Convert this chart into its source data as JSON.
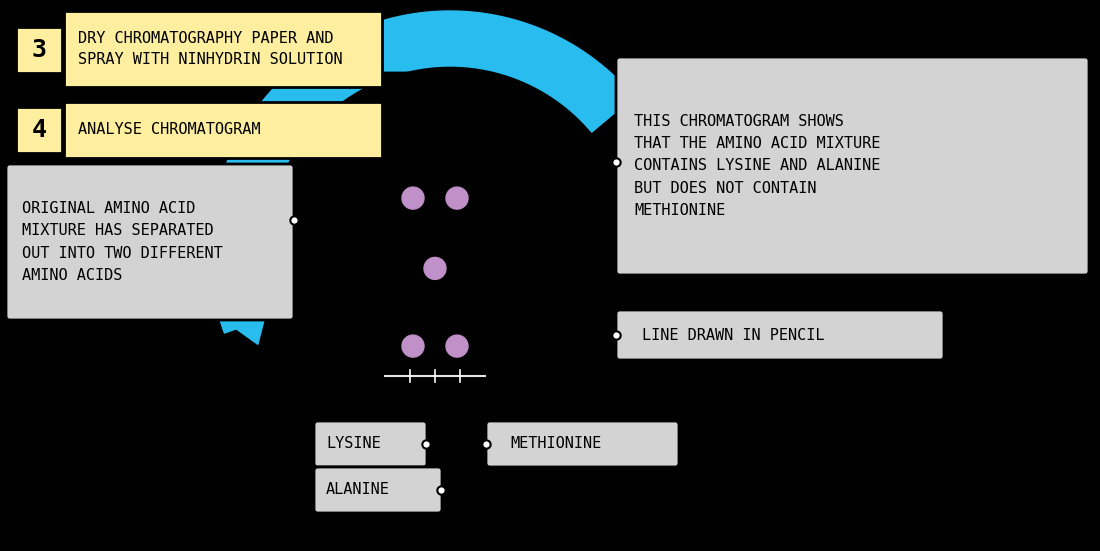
{
  "background_color": "#000000",
  "cyan_color": "#29BCEF",
  "yellow_box_color": "#FDEEA0",
  "grey_box_color": "#D3D3D3",
  "purple_dot_color": "#C090C8",
  "text_color": "#000000",
  "white_color": "#FFFFFF",
  "step3_number": "3",
  "step3_text": "DRY CHROMATOGRAPHY PAPER AND\nSPRAY WITH NINHYDRIN SOLUTION",
  "step4_number": "4",
  "step4_text": "ANALYSE CHROMATOGRAM",
  "left_box_text": "ORIGINAL AMINO ACID\nMIXTURE HAS SEPARATED\nOUT INTO TWO DIFFERENT\nAMINO ACIDS",
  "right_box_text": "THIS CHROMATOGRAM SHOWS\nTHAT THE AMINO ACID MIXTURE\nCONTAINS LYSINE AND ALANINE\nBUT DOES NOT CONTAIN\nMETHIONINE",
  "pencil_line_text": "LINE DRAWN IN PENCIL",
  "lysine_text": "LYSINE",
  "methionine_text": "METHIONINE",
  "alanine_text": "ALANINE",
  "fig_width": 11.0,
  "fig_height": 5.51,
  "dpi": 100
}
